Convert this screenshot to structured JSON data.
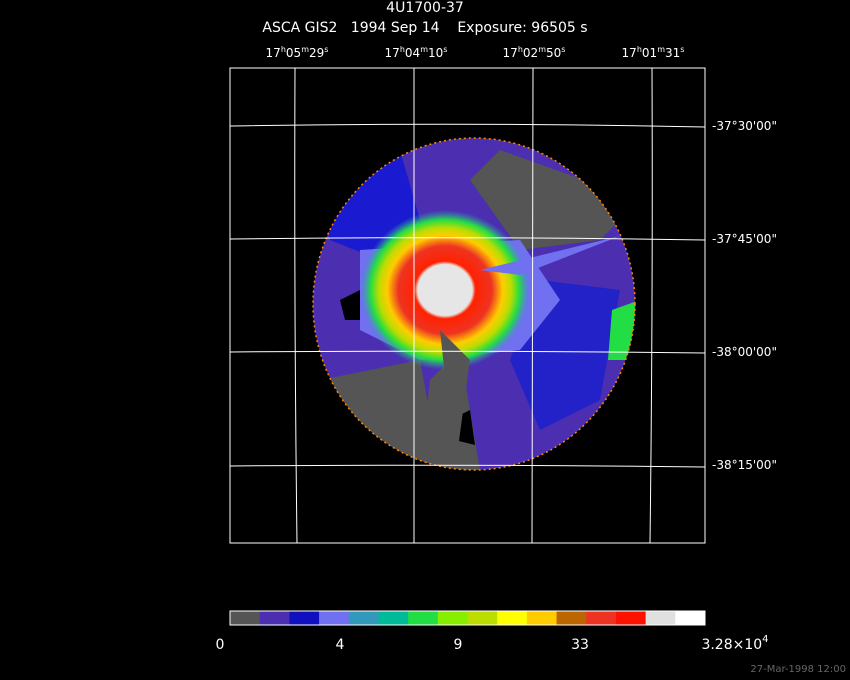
{
  "header": {
    "title": "4U1700-37",
    "subtitle": "ASCA GIS2   1994 Sep 14    Exposure: 96505 s"
  },
  "ra_labels": [
    [
      "17",
      "h",
      "05",
      "m",
      "29",
      "s"
    ],
    [
      "17",
      "h",
      "04",
      "m",
      "10",
      "s"
    ],
    [
      "17",
      "h",
      "02",
      "m",
      "50",
      "s"
    ],
    [
      "17",
      "h",
      "01",
      "m",
      "31",
      "s"
    ]
  ],
  "dec_labels": [
    "-37°30'00\"",
    "-37°45'00\"",
    "-38°00'00\"",
    "-38°15'00\""
  ],
  "colorbar_labels": [
    "0",
    "4",
    "9",
    "33",
    [
      "3.28×10",
      "4"
    ]
  ],
  "timestamp": "27-Mar-1998 12:00"
}
